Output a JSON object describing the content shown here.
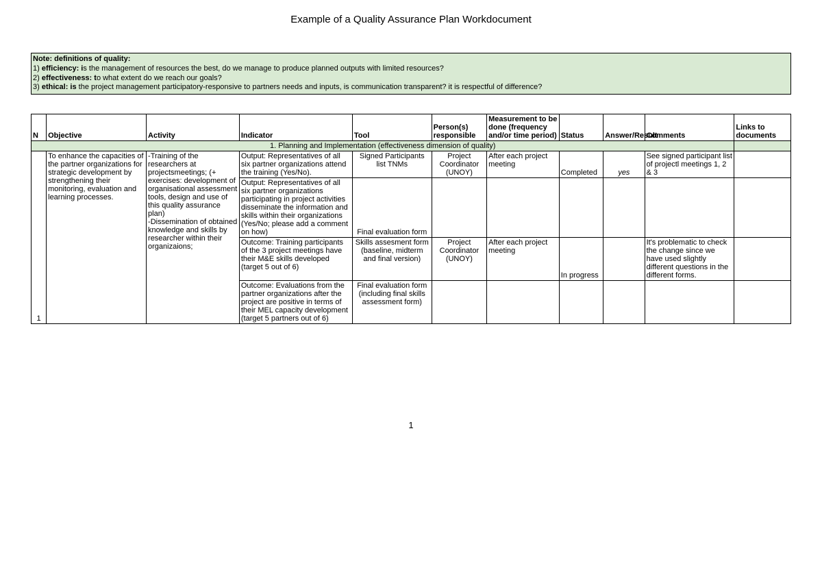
{
  "title": "Example of a Quality Assurance Plan Workdocument",
  "pageNumber": "1",
  "colors": {
    "section_bg": "#d9ead3",
    "border": "#000000",
    "background": "#ffffff",
    "text": "#000000"
  },
  "note": {
    "heading": "Note: definitions of quality:",
    "n1": "1) ",
    "term1": "efficiency: i",
    "rest1": "s the management of resources the best, do we manage to produce planned outputs with limited resources?",
    "n2": "2) ",
    "term2": "effectiveness: t",
    "rest2": "o what extent do we reach our goals?",
    "n3": "3) ",
    "term3": "ethical: is",
    "rest3": " the project management participatory-responsive to partners needs and inputs, is communication transparent? it is respectful of difference?"
  },
  "headers": {
    "n": "N",
    "objective": "Objective",
    "activity": "Activity",
    "indicator": "Indicator",
    "tool": "Tool",
    "person": "Person(s) responsible",
    "measurement": "Measurement to be done (frequency and/or time period)",
    "status": "Status",
    "answer": "Answer/Result",
    "comments": "Comments",
    "links": "Links to documents"
  },
  "section1": "1. Planning and Implementation (effectiveness dimension of quality)",
  "row": {
    "n": "1",
    "objective": "To enhance the capacities of the partner organizations for strategic development by strengthening their monitoring, evaluation and learning processes.",
    "activity": "-Training of the researchers at projectsmeetings; (+ exercises: development of organisational assessment tools, design and use of this quality assurance plan)\n-Dissemination of obtained knowledge and skills by researcher within their organizaions;",
    "ind1": "Output: Representatives of all six partner organizations attend the training (Yes/No).",
    "tool1": "Signed Participants list TNMs",
    "pers1": "Project Coordinator (UNOY)",
    "meas1": "After each project meeting",
    "stat1": "Completed",
    "ans1": "yes",
    "com1": "See signed participant list of projectl meetings 1, 2 & 3",
    "ind2": "Output: Representatives of all six partner organizations participating in project activities disseminate the information and skills within their organizations (Yes/No; please add a comment on how)",
    "tool2": "Final evaluation form",
    "ind3": "Outcome: Training participants of the 3 project meetings have their M&E skills developed (target 5 out of 6)",
    "tool3": "Skills assesment form (baseline, midterm and final version)",
    "pers3": "Project Coordinator (UNOY)",
    "meas3": "After each project meeting",
    "stat3": "In progress",
    "com3": "It's problematic to check the change since we have used slightly different questions in the different forms.",
    "ind4": "Outcome: Evaluations from the partner organizations after the project are positive in terms of their  MEL capacity development (target 5 partners out of 6)",
    "tool4": "Final evaluation form (including final skills assessment form)"
  }
}
